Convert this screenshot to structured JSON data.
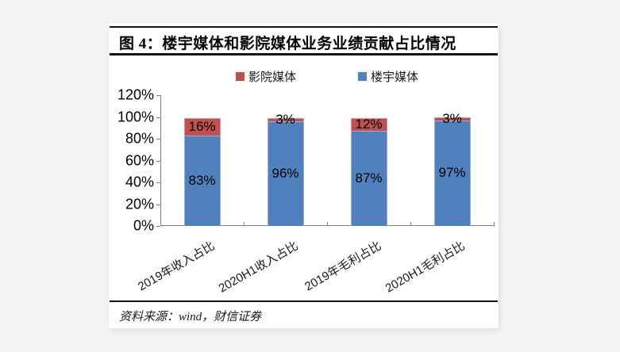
{
  "card": {
    "title": "图 4：楼宇媒体和影院媒体业务业绩贡献占比情况",
    "source": "资料来源：wind，财信证券"
  },
  "colors": {
    "building_media_blue": "#4e81bd",
    "cinema_media_red": "#c0504d",
    "axis_gray": "#7f7f7f",
    "page_background": "#f2f3f5"
  },
  "chart_data": {
    "type": "bar",
    "stacked": true,
    "title": "",
    "xlabel": "",
    "ylabel": "",
    "categories": [
      "2019年收入占比",
      "2020H1收入占比",
      "2019年毛利占比",
      "2020H1毛利占比"
    ],
    "series": [
      {
        "name": "楼宇媒体",
        "color": "#4e81bd",
        "values": [
          83,
          96,
          87,
          97
        ],
        "data_labels": [
          "83%",
          "96%",
          "87%",
          "97%"
        ]
      },
      {
        "name": "影院媒体",
        "color": "#c0504d",
        "values": [
          16,
          3,
          12,
          3
        ],
        "data_labels": [
          "16%",
          "3%",
          "12%",
          "3%"
        ]
      }
    ],
    "legend": [
      {
        "label": "影院媒体",
        "color": "#c0504d"
      },
      {
        "label": "楼宇媒体",
        "color": "#4e81bd"
      }
    ],
    "legend_position": "top",
    "grid": false,
    "ylim": [
      0,
      120
    ],
    "ytick_step": 20,
    "ytick_labels": [
      "0%",
      "20%",
      "40%",
      "60%",
      "80%",
      "100%",
      "120%"
    ]
  }
}
